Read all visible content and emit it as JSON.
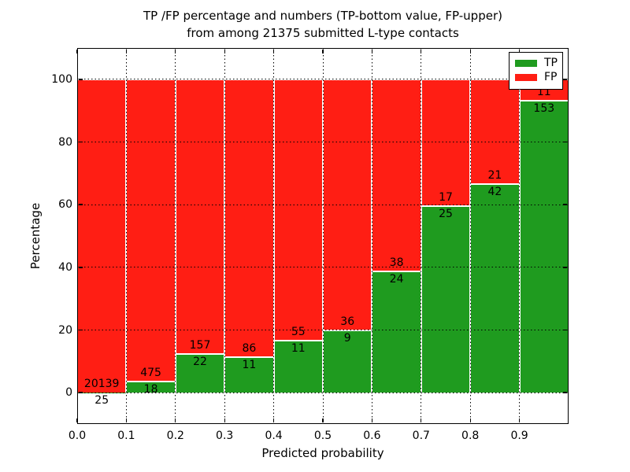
{
  "chart_data": {
    "type": "bar",
    "subtype": "stacked-percentage-histogram",
    "title_line1": "TP /FP percentage and numbers (TP-bottom value, FP-upper)",
    "title_line2": "from among 21375 submitted L-type contacts",
    "total_contacts": 21375,
    "xlabel": "Predicted probability",
    "ylabel": "Percentage",
    "xlim": [
      0.0,
      1.0
    ],
    "ylim": [
      -10,
      110
    ],
    "x_tick_labels": [
      "0.0",
      "0.1",
      "0.2",
      "0.3",
      "0.4",
      "0.5",
      "0.6",
      "0.7",
      "0.8",
      "0.9"
    ],
    "y_ticks": [
      0,
      20,
      40,
      60,
      80,
      100
    ],
    "grid": "dotted-black-both-axes",
    "colors": {
      "tp": "#1f9b1f",
      "fp": "#ff1e14",
      "bar_edge": "#ffffff",
      "text": "#000000"
    },
    "categories": [
      "0.0-0.1",
      "0.1-0.2",
      "0.2-0.3",
      "0.3-0.4",
      "0.4-0.5",
      "0.5-0.6",
      "0.6-0.7",
      "0.7-0.8",
      "0.8-0.9",
      "0.9-1.0"
    ],
    "series": [
      {
        "name": "TP",
        "stack_position": "bottom",
        "color": "#1f9b1f",
        "counts": [
          25,
          18,
          22,
          11,
          11,
          9,
          24,
          25,
          42,
          153
        ]
      },
      {
        "name": "FP",
        "stack_position": "top",
        "color": "#ff1e14",
        "counts": [
          20139,
          475,
          157,
          86,
          55,
          36,
          38,
          17,
          21,
          11
        ]
      }
    ],
    "tp_percent_of_bin": [
      0.12,
      3.65,
      12.29,
      11.34,
      16.67,
      20.0,
      38.71,
      59.52,
      66.67,
      93.29
    ],
    "legend": {
      "position": "upper-right",
      "entries": [
        {
          "label": "TP",
          "color": "#1f9b1f"
        },
        {
          "label": "FP",
          "color": "#ff1e14"
        }
      ]
    }
  }
}
